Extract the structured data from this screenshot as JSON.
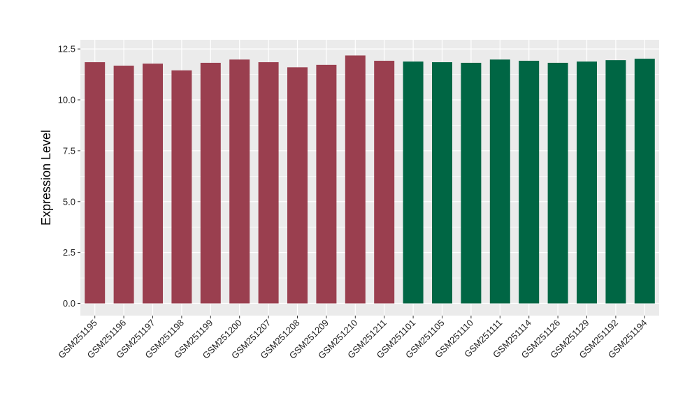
{
  "chart_data": {
    "type": "bar",
    "title": "",
    "xlabel": "",
    "ylabel": "Expression Level",
    "ylim": [
      -0.6,
      12.95
    ],
    "yticks": [
      0.0,
      2.5,
      5.0,
      7.5,
      10.0,
      12.5
    ],
    "ytick_labels": [
      "0.0",
      "2.5",
      "5.0",
      "7.5",
      "10.0",
      "12.5"
    ],
    "grid": true,
    "legend": "none",
    "categories": [
      "GSM251195",
      "GSM251196",
      "GSM251197",
      "GSM251198",
      "GSM251199",
      "GSM251200",
      "GSM251207",
      "GSM251208",
      "GSM251209",
      "GSM251210",
      "GSM251211",
      "GSM251101",
      "GSM251105",
      "GSM251110",
      "GSM251111",
      "GSM251114",
      "GSM251126",
      "GSM251129",
      "GSM251192",
      "GSM251194"
    ],
    "values": [
      11.85,
      11.68,
      11.78,
      11.45,
      11.82,
      11.98,
      11.85,
      11.6,
      11.72,
      12.18,
      11.92,
      11.88,
      11.85,
      11.82,
      11.98,
      11.92,
      11.82,
      11.88,
      11.95,
      12.02
    ],
    "groups": [
      0,
      0,
      0,
      0,
      0,
      0,
      0,
      0,
      0,
      0,
      0,
      1,
      1,
      1,
      1,
      1,
      1,
      1,
      1,
      1
    ],
    "group_colors": [
      "#9A3F4F",
      "#006644"
    ],
    "panel_background": "#EBEBEB",
    "grid_color": "#FFFFFF"
  }
}
